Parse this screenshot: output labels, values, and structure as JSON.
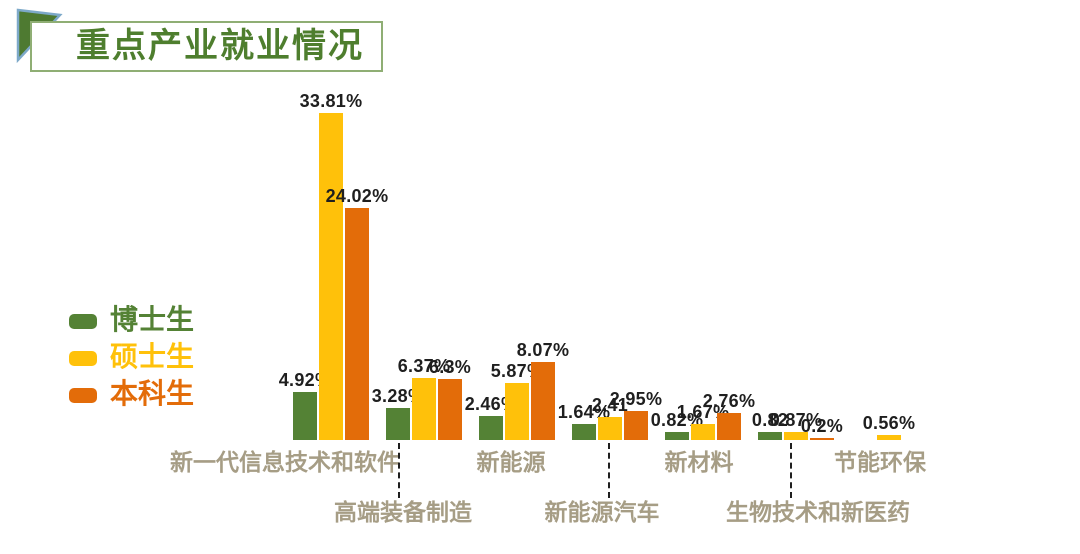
{
  "title": {
    "text": "重点产业就业情况"
  },
  "legend": {
    "items": [
      {
        "key": "doctoral",
        "label": "博士生",
        "color": "#548235"
      },
      {
        "key": "masters",
        "label": "硕士生",
        "color": "#ffc10a"
      },
      {
        "key": "undergraduate",
        "label": "本科生",
        "color": "#e36c09"
      }
    ]
  },
  "chart_data": {
    "type": "bar",
    "title": "重点产业就业情况",
    "xlabel": "",
    "ylabel": "",
    "ylim": [
      0,
      35
    ],
    "grid": false,
    "legend_position": "left-middle",
    "value_unit": "percent",
    "categories": [
      "新一代信息技术和软件",
      "高端装备制造",
      "新能源",
      "新能源汽车",
      "新材料",
      "生物技术和新医药",
      "节能环保"
    ],
    "series": [
      {
        "name": "博士生",
        "key": "doctoral",
        "color": "#548235",
        "values": [
          4.92,
          3.28,
          2.46,
          1.64,
          0.82,
          0.82,
          0
        ],
        "labels": [
          "4.92%",
          "3.28%",
          "2.46%",
          "1.64%",
          "0.82%",
          "0.82",
          ""
        ]
      },
      {
        "name": "硕士生",
        "key": "masters",
        "color": "#ffc10a",
        "values": [
          33.81,
          6.37,
          5.87,
          2.41,
          1.67,
          0.87,
          0.56
        ],
        "labels": [
          "33.81%",
          "6.37%",
          "5.87%",
          "2.41",
          "1.67%",
          "0.87%",
          "0.56%"
        ]
      },
      {
        "name": "本科生",
        "key": "undergraduate",
        "color": "#e36c09",
        "values": [
          24.02,
          6.3,
          8.07,
          2.95,
          2.76,
          0.2,
          0
        ],
        "labels": [
          "24.02%",
          "6.3%",
          "8.07%",
          "2.95%",
          "2.76%",
          "0.2%",
          ""
        ]
      }
    ]
  },
  "colors": {
    "title_green": "#4e7e2e",
    "title_border": "#8fae74",
    "triangle_fill": "#4e7a31",
    "triangle_edge": "#7da9c9",
    "category_label": "#a69d85",
    "value_label": "#1f1f1f",
    "background": "#ffffff"
  }
}
